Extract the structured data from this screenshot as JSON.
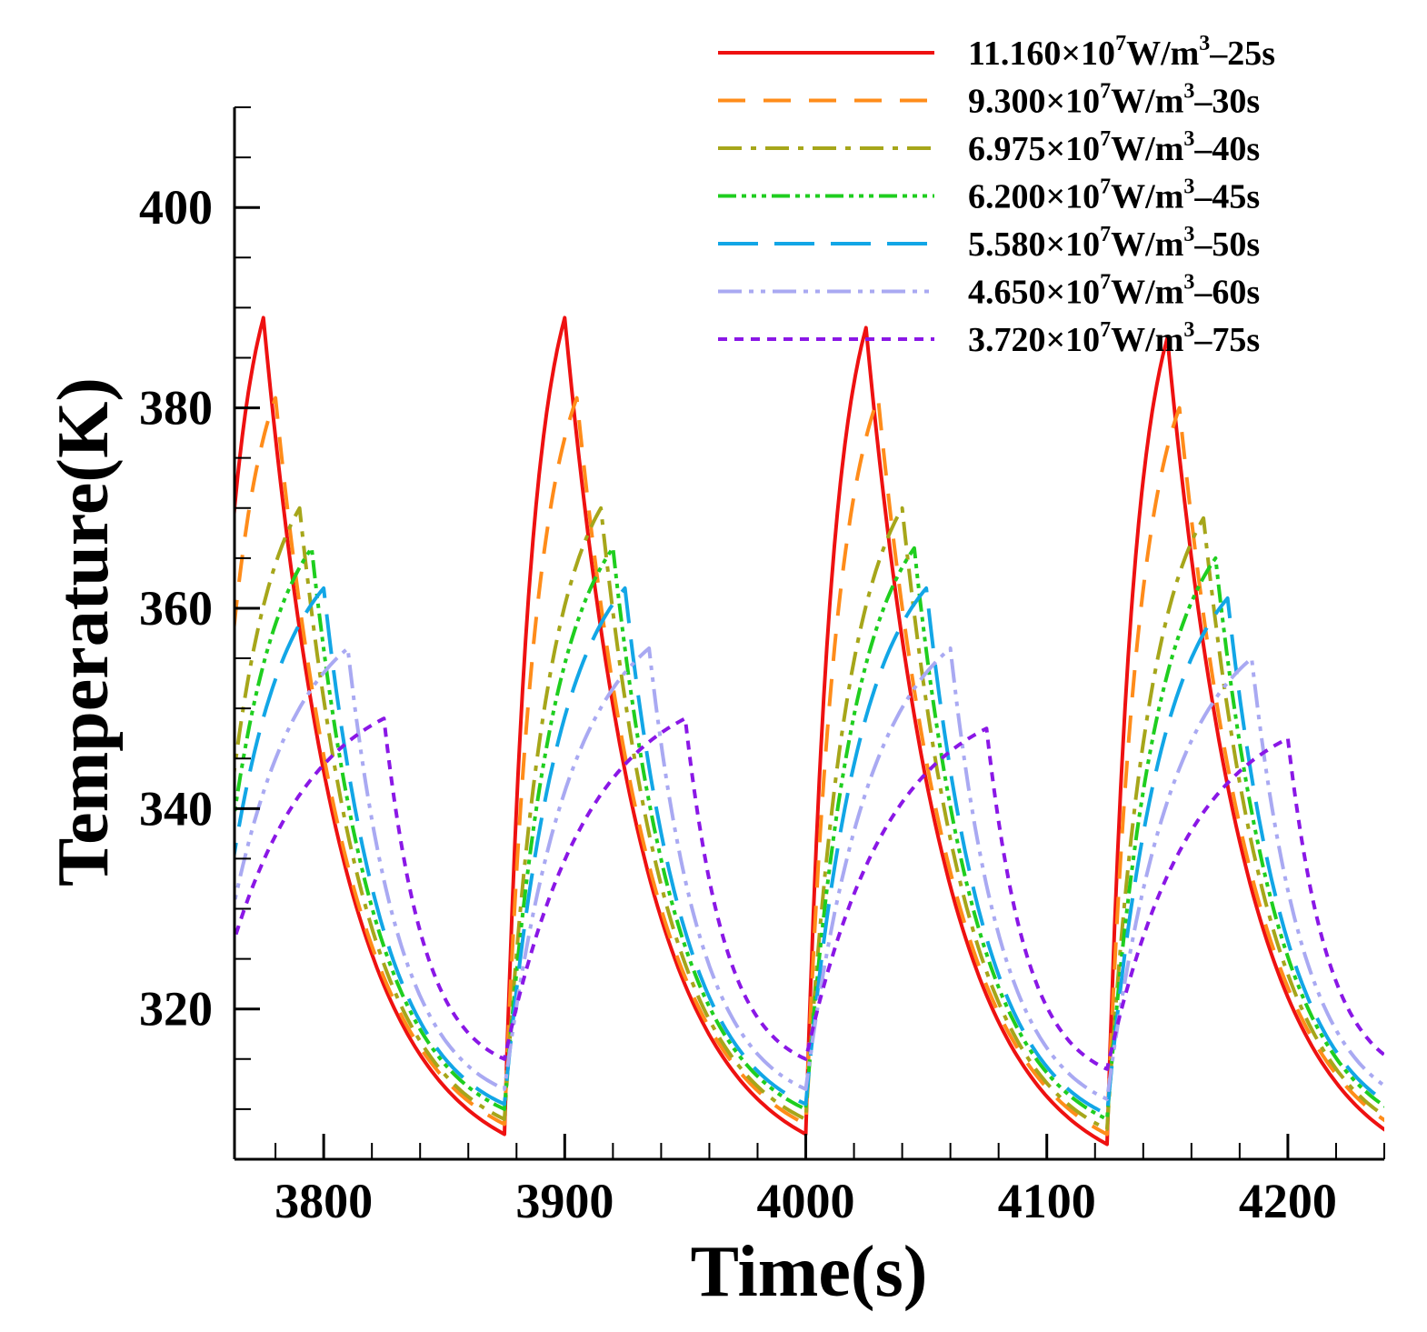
{
  "chart_data": {
    "type": "line",
    "title": "",
    "xlabel": "Time(s)",
    "ylabel": "Temperature(K)",
    "xlim": [
      3763,
      4240
    ],
    "ylim": [
      305,
      410
    ],
    "x_ticks": [
      3800,
      3900,
      4000,
      4100,
      4200
    ],
    "y_ticks": [
      320,
      340,
      360,
      380,
      400
    ],
    "x_minor_step": 20,
    "y_minor_step": 5,
    "grid": false,
    "legend_position": "top-right",
    "cycle_period": 125,
    "cycle_starts": [
      3750,
      3875,
      4000,
      4125
    ],
    "series": [
      {
        "name": "11.160×10^7W/m^3–25s",
        "label_main": "11.160×10",
        "label_exp1": "7",
        "label_mid": "W/m",
        "label_exp2": "3",
        "label_tail": "–25s",
        "color": "#ee1111",
        "dash": "none",
        "heating_duration": 25,
        "peaks": [
          389,
          389,
          388,
          387
        ],
        "troughs": [
          307.5,
          307.5,
          306.5
        ]
      },
      {
        "name": "9.300×10^7W/m^3–30s",
        "label_main": "9.300×10",
        "label_exp1": "7",
        "label_mid": "W/m",
        "label_exp2": "3",
        "label_tail": "–30s",
        "color": "#ff8c1a",
        "dash": "30,20",
        "heating_duration": 30,
        "peaks": [
          381,
          381,
          381,
          380
        ],
        "troughs": [
          308.5,
          308.5,
          307.5
        ]
      },
      {
        "name": "6.975×10^7W/m^3–40s",
        "label_main": "6.975×10",
        "label_exp1": "7",
        "label_mid": "W/m",
        "label_exp2": "3",
        "label_tail": "–40s",
        "color": "#a6a61a",
        "dash": "26,10,6,10",
        "heating_duration": 40,
        "peaks": [
          370,
          370,
          370,
          369
        ],
        "troughs": [
          309,
          309,
          308
        ]
      },
      {
        "name": "6.200×10^7W/m^3–45s",
        "label_main": "6.200×10",
        "label_exp1": "7",
        "label_mid": "W/m",
        "label_exp2": "3",
        "label_tail": "–45s",
        "color": "#1fce1f",
        "dash": "20,6,5,6,5,6,5,6",
        "heating_duration": 45,
        "peaks": [
          366,
          366,
          366,
          365
        ],
        "troughs": [
          310,
          310,
          309
        ]
      },
      {
        "name": "5.580×10^7W/m^3–50s",
        "label_main": "5.580×10",
        "label_exp1": "7",
        "label_mid": "W/m",
        "label_exp2": "3",
        "label_tail": "–50s",
        "color": "#12a6e6",
        "dash": "44,18",
        "heating_duration": 50,
        "peaks": [
          362,
          362,
          362,
          361
        ],
        "troughs": [
          310.5,
          310.5,
          309.5
        ]
      },
      {
        "name": "4.650×10^7W/m^3–60s",
        "label_main": "4.650×10",
        "label_exp1": "7",
        "label_mid": "W/m",
        "label_exp2": "3",
        "label_tail": "–60s",
        "color": "#a9a9f2",
        "dash": "26,8,5,8,5,8",
        "heating_duration": 60,
        "peaks": [
          356,
          356,
          356,
          355
        ],
        "troughs": [
          312,
          312,
          311
        ]
      },
      {
        "name": "3.720×10^7W/m^3–75s",
        "label_main": "3.720×10",
        "label_exp1": "7",
        "label_mid": "W/m",
        "label_exp2": "3",
        "label_tail": "–75s",
        "color": "#8a17e6",
        "dash": "10,8",
        "heating_duration": 75,
        "peaks": [
          349,
          349,
          348,
          347
        ],
        "troughs": [
          315,
          315,
          314
        ]
      }
    ]
  }
}
